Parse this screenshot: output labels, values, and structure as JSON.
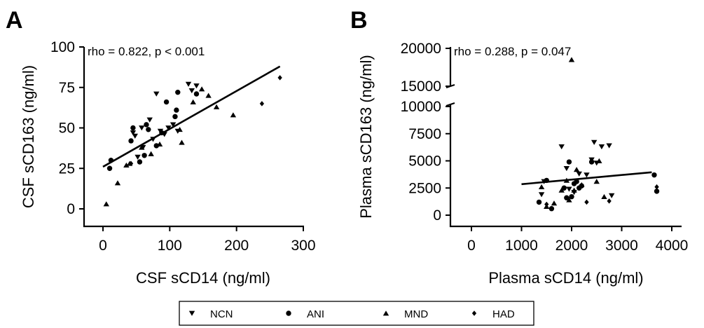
{
  "figure": {
    "legend": [
      {
        "label": "NCN",
        "marker": "triangle-down"
      },
      {
        "label": "ANI",
        "marker": "circle"
      },
      {
        "label": "MND",
        "marker": "triangle-up"
      },
      {
        "label": "HAD",
        "marker": "diamond"
      }
    ]
  },
  "chart_data": [
    {
      "type": "scatter",
      "panel": "A",
      "title": "",
      "xlabel": "CSF sCD14 (ng/ml)",
      "ylabel": "CSF sCD163 (ng/ml)",
      "xlim": [
        0,
        300
      ],
      "ylim": [
        0,
        100
      ],
      "xticks": [
        0,
        100,
        200,
        300
      ],
      "yticks": [
        0,
        25,
        50,
        75,
        100
      ],
      "annotation": "rho =  0.822,  p < 0.001",
      "fit_line": {
        "x": [
          0,
          265
        ],
        "y": [
          26,
          88
        ]
      },
      "series": [
        {
          "name": "NCN",
          "points": [
            [
              45,
              47
            ],
            [
              48,
              45
            ],
            [
              52,
              32
            ],
            [
              58,
              50
            ],
            [
              60,
              38
            ],
            [
              70,
              55
            ],
            [
              75,
              43
            ],
            [
              80,
              71
            ],
            [
              86,
              48
            ],
            [
              92,
              46
            ],
            [
              98,
              50
            ],
            [
              105,
              52
            ],
            [
              112,
              48
            ],
            [
              128,
              77
            ],
            [
              133,
              73
            ],
            [
              140,
              76
            ]
          ]
        },
        {
          "name": "ANI",
          "points": [
            [
              10,
              25
            ],
            [
              12,
              30
            ],
            [
              42,
              42
            ],
            [
              45,
              50
            ],
            [
              55,
              29
            ],
            [
              62,
              33
            ],
            [
              65,
              52
            ],
            [
              68,
              49
            ],
            [
              80,
              39
            ],
            [
              88,
              47
            ],
            [
              95,
              66
            ],
            [
              108,
              57
            ],
            [
              110,
              61
            ],
            [
              112,
              72
            ],
            [
              140,
              71
            ]
          ]
        },
        {
          "name": "MND",
          "points": [
            [
              5,
              3
            ],
            [
              22,
              16
            ],
            [
              35,
              27
            ],
            [
              40,
              28
            ],
            [
              58,
              38
            ],
            [
              72,
              34
            ],
            [
              85,
              40
            ],
            [
              115,
              49
            ],
            [
              118,
              41
            ],
            [
              135,
              66
            ],
            [
              148,
              74
            ],
            [
              158,
              70
            ],
            [
              170,
              63
            ],
            [
              195,
              58
            ]
          ]
        },
        {
          "name": "HAD",
          "points": [
            [
              42,
              28
            ],
            [
              238,
              65
            ],
            [
              265,
              81
            ]
          ]
        }
      ]
    },
    {
      "type": "scatter",
      "panel": "B",
      "title": "",
      "xlabel": "Plasma sCD14 (ng/ml)",
      "ylabel": "Plasma sCD163 (ng/ml)",
      "xlim": [
        0,
        4000
      ],
      "ylim": [
        0,
        20000
      ],
      "y_axis_break": [
        10000,
        15000
      ],
      "xticks": [
        0,
        1000,
        2000,
        3000,
        4000
      ],
      "yticks": [
        0,
        2500,
        5000,
        7500,
        10000,
        15000,
        20000
      ],
      "annotation": "rho =  0.288,  p = 0.047",
      "fit_line": {
        "x": [
          1000,
          3600
        ],
        "y": [
          2850,
          3950
        ]
      },
      "series": [
        {
          "name": "NCN",
          "points": [
            [
              1400,
              1900
            ],
            [
              1450,
              3100
            ],
            [
              1800,
              6300
            ],
            [
              1900,
              4300
            ],
            [
              1950,
              2400
            ],
            [
              2050,
              2100
            ],
            [
              2150,
              3800
            ],
            [
              2300,
              3700
            ],
            [
              2400,
              5100
            ],
            [
              2450,
              6700
            ],
            [
              2500,
              4800
            ],
            [
              2600,
              6300
            ],
            [
              2750,
              6400
            ],
            [
              2800,
              1800
            ]
          ]
        },
        {
          "name": "ANI",
          "points": [
            [
              1350,
              1200
            ],
            [
              1500,
              3200
            ],
            [
              1600,
              600
            ],
            [
              1850,
              2500
            ],
            [
              1900,
              1600
            ],
            [
              1950,
              4900
            ],
            [
              2000,
              1700
            ],
            [
              2050,
              2900
            ],
            [
              2100,
              3100
            ],
            [
              2150,
              2500
            ],
            [
              2200,
              2700
            ],
            [
              2400,
              4900
            ],
            [
              3650,
              3700
            ],
            [
              3700,
              2200
            ]
          ]
        },
        {
          "name": "MND",
          "points": [
            [
              1400,
              2600
            ],
            [
              1500,
              800
            ],
            [
              1650,
              1100
            ],
            [
              1800,
              2300
            ],
            [
              1900,
              3200
            ],
            [
              1950,
              1400
            ],
            [
              2000,
              18500
            ],
            [
              2050,
              2300
            ],
            [
              2100,
              4200
            ],
            [
              2200,
              2800
            ],
            [
              2500,
              3100
            ],
            [
              2550,
              5000
            ],
            [
              2650,
              1700
            ]
          ]
        },
        {
          "name": "HAD",
          "points": [
            [
              1500,
              1000
            ],
            [
              2300,
              1200
            ],
            [
              2750,
              1300
            ],
            [
              3700,
              2600
            ]
          ]
        }
      ]
    }
  ]
}
